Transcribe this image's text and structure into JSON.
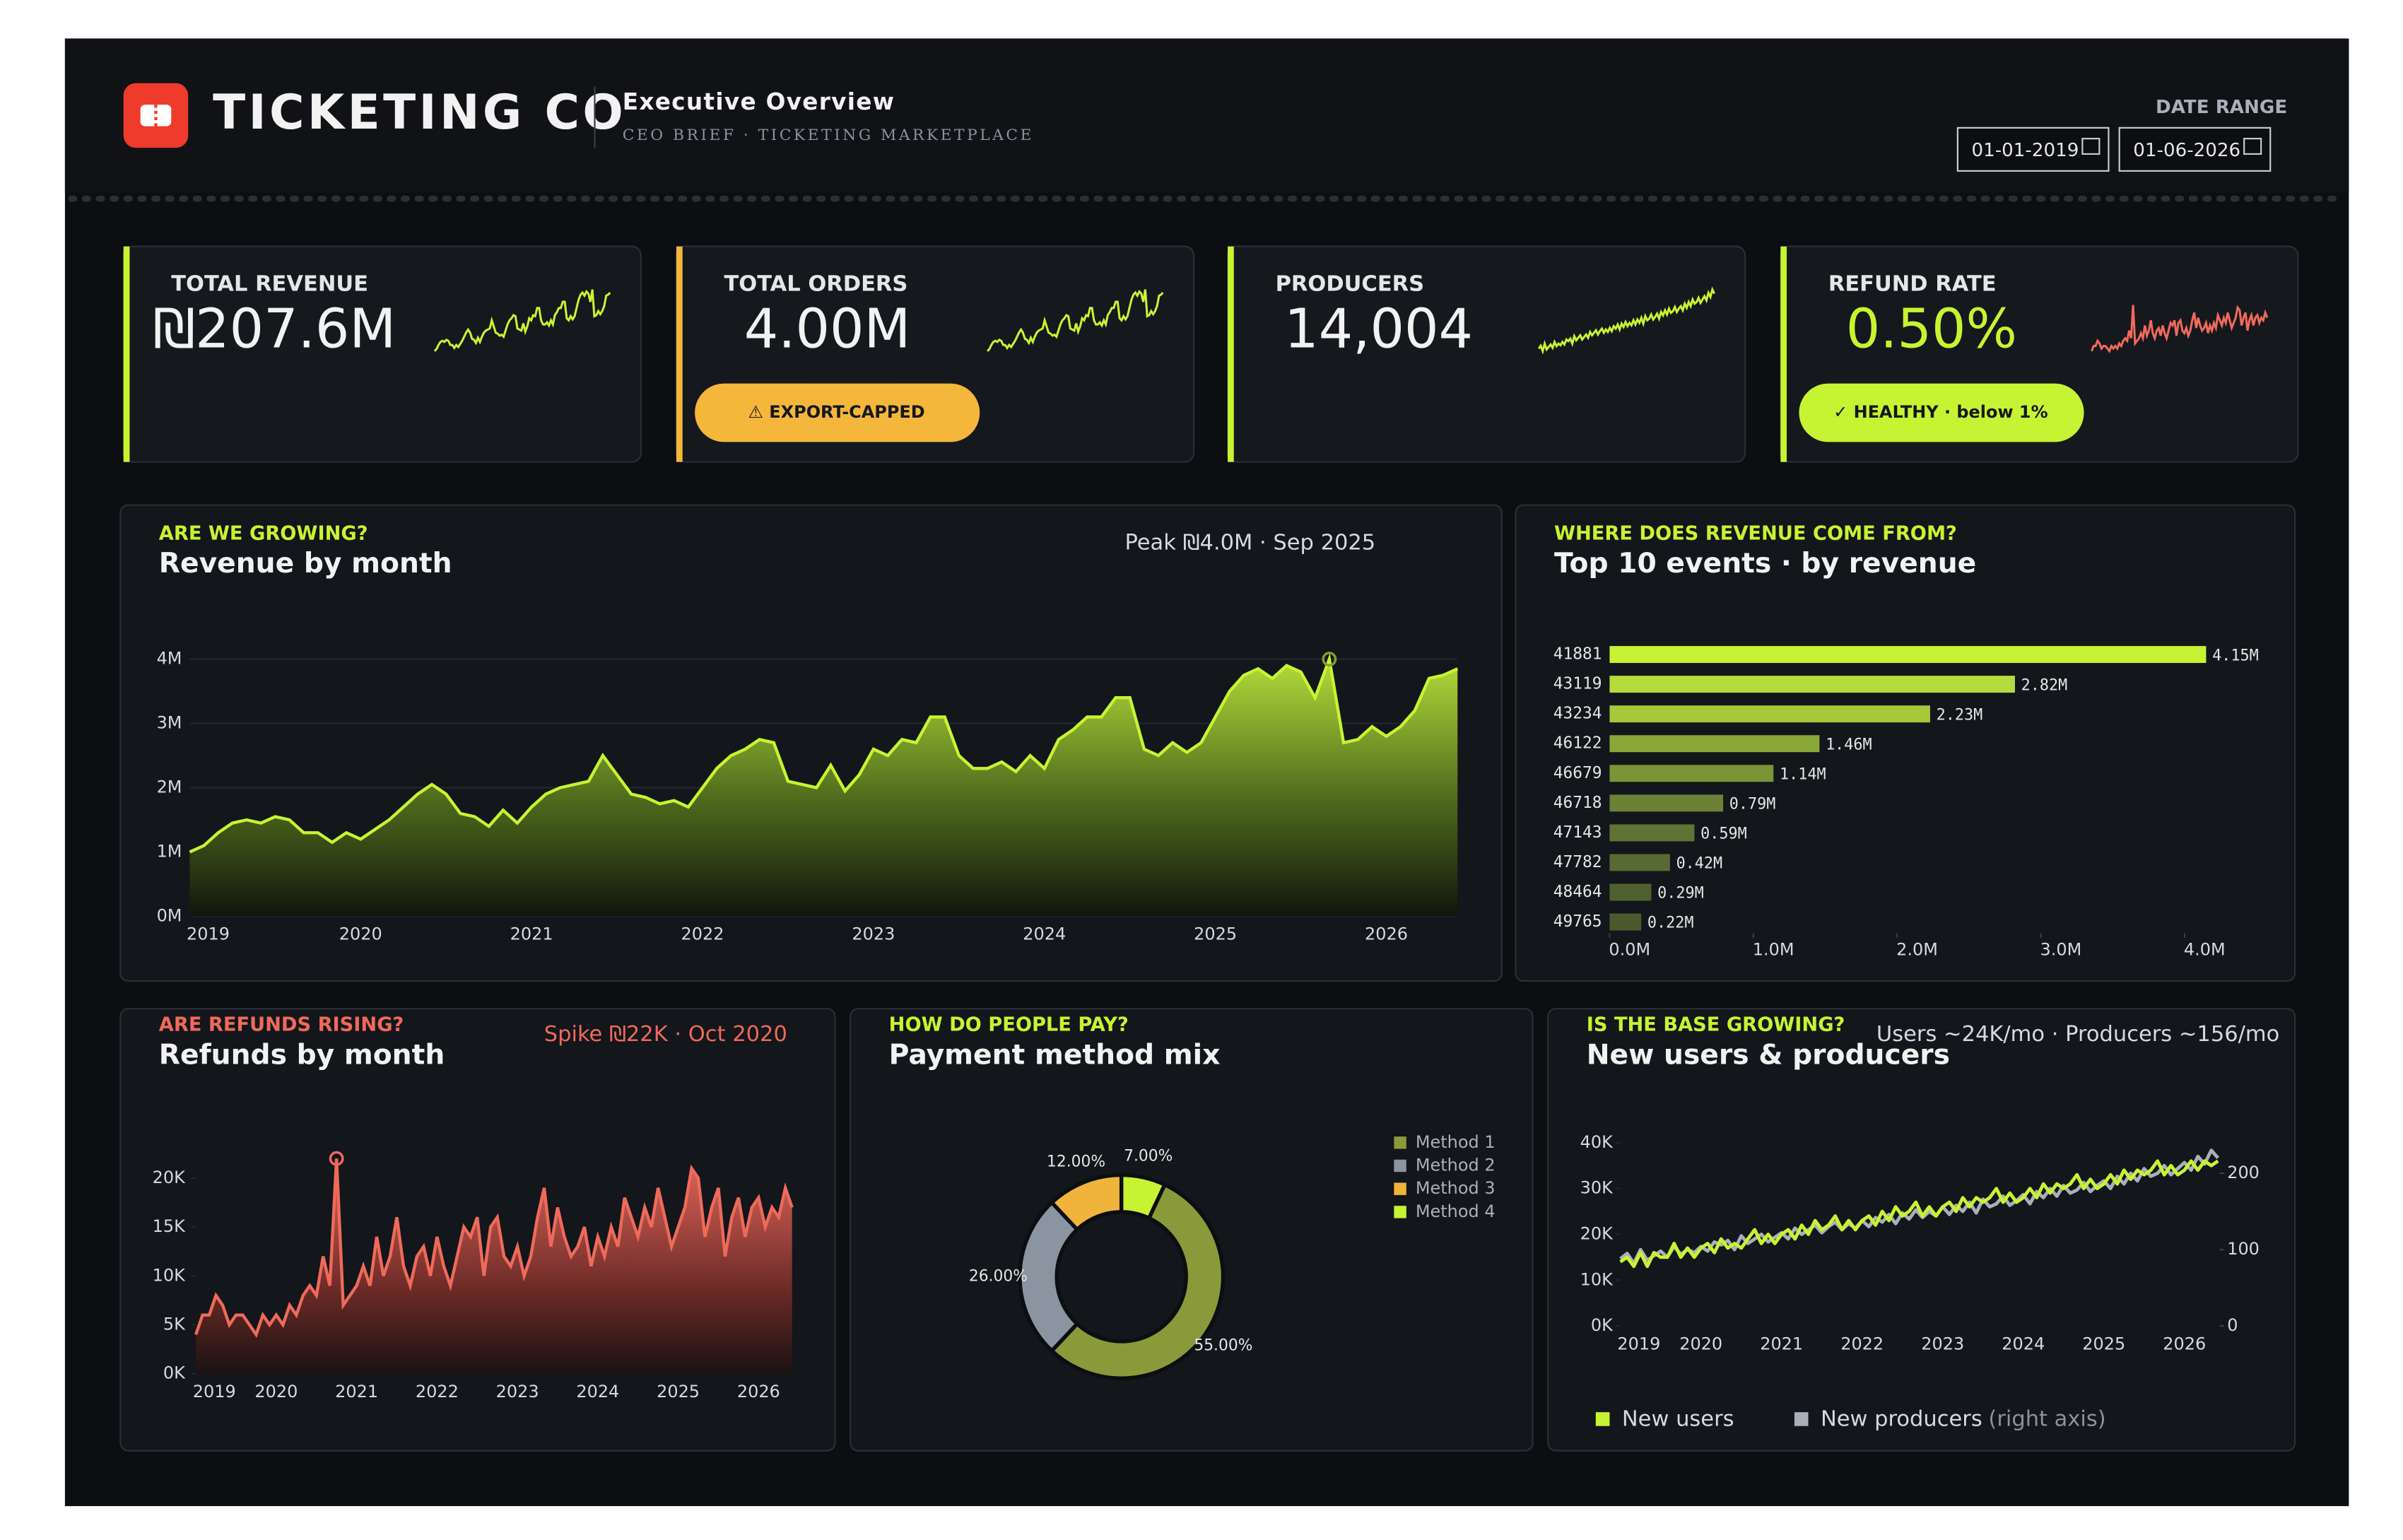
{
  "header": {
    "brand": "TICKETING CO",
    "title": "Executive Overview",
    "subtitle": "CEO BRIEF · TICKETING MARKETPLACE"
  },
  "date_range": {
    "label": "DATE RANGE",
    "start": "01-01-2019",
    "end": "01-06-2026"
  },
  "kpis": [
    {
      "label": "TOTAL REVENUE",
      "value": "₪207.6M",
      "color": "#c6f432",
      "value_color": "#f2f2f2",
      "spark_color": "#c6f432"
    },
    {
      "label": "TOTAL ORDERS",
      "value": "4.00M",
      "color": "#f5b63c",
      "value_color": "#f2f2f2",
      "spark_color": "#c6f432",
      "badge": "⚠ EXPORT-CAPPED",
      "badge_color": "#f5b63c"
    },
    {
      "label": "PRODUCERS",
      "value": "14,004",
      "color": "#c6f432",
      "value_color": "#f2f2f2",
      "spark_color": "#c6f432"
    },
    {
      "label": "REFUND RATE",
      "value": "0.50%",
      "color": "#c6f432",
      "value_color": "#c6f432",
      "spark_color": "#ef6a5a",
      "badge": "✓ HEALTHY · below 1%",
      "badge_color": "#c6f432"
    }
  ],
  "chart_data": [
    {
      "type": "area",
      "kicker": "ARE WE GROWING?",
      "accent": "#c6f432",
      "title": "Revenue by month",
      "annotation": "Peak ₪4.0M · Sep 2025",
      "color": "#c6f432",
      "categories": [
        "2019",
        null,
        null,
        null,
        null,
        null,
        null,
        null,
        null,
        null,
        null,
        null,
        "2020",
        null,
        null,
        null,
        null,
        null,
        null,
        null,
        null,
        null,
        null,
        null,
        "2021",
        null,
        null,
        null,
        null,
        null,
        null,
        null,
        null,
        null,
        null,
        null,
        "2022",
        null,
        null,
        null,
        null,
        null,
        null,
        null,
        null,
        null,
        null,
        null,
        "2023",
        null,
        null,
        null,
        null,
        null,
        null,
        null,
        null,
        null,
        null,
        null,
        "2024",
        null,
        null,
        null,
        null,
        null,
        null,
        null,
        null,
        null,
        null,
        null,
        "2025",
        null,
        null,
        null,
        null,
        null,
        null,
        null,
        null,
        null,
        null,
        null,
        "2026",
        null,
        null,
        null,
        null,
        null
      ],
      "values": [
        1.0,
        1.1,
        1.3,
        1.45,
        1.5,
        1.45,
        1.55,
        1.5,
        1.3,
        1.3,
        1.15,
        1.3,
        1.2,
        1.35,
        1.5,
        1.7,
        1.9,
        2.05,
        1.9,
        1.6,
        1.55,
        1.4,
        1.65,
        1.45,
        1.7,
        1.9,
        2.0,
        2.05,
        2.1,
        2.5,
        2.2,
        1.9,
        1.85,
        1.75,
        1.8,
        1.7,
        2.0,
        2.3,
        2.5,
        2.6,
        2.75,
        2.7,
        2.1,
        2.05,
        2.0,
        2.35,
        1.95,
        2.2,
        2.6,
        2.5,
        2.75,
        2.7,
        3.1,
        3.1,
        2.5,
        2.3,
        2.3,
        2.4,
        2.25,
        2.5,
        2.3,
        2.75,
        2.9,
        3.1,
        3.1,
        3.4,
        3.4,
        2.6,
        2.5,
        2.7,
        2.55,
        2.7,
        3.1,
        3.5,
        3.75,
        3.85,
        3.7,
        3.9,
        3.8,
        3.4,
        4.0,
        2.7,
        2.75,
        2.95,
        2.8,
        2.95,
        3.2,
        3.7,
        3.75,
        3.85
      ],
      "ylim": [
        0,
        4
      ],
      "yticks": [
        {
          "value": 0,
          "label": "0M"
        },
        {
          "value": 1,
          "label": "1M"
        },
        {
          "value": 2,
          "label": "2M"
        },
        {
          "value": 3,
          "label": "3M"
        },
        {
          "value": 4,
          "label": "4M"
        }
      ],
      "grid": true
    },
    {
      "type": "hbar",
      "kicker": "WHERE DOES REVENUE COME FROM?",
      "accent": "#c6f432",
      "title": "Top 10 events · by revenue",
      "categories": [
        "41881",
        "43119",
        "43234",
        "46122",
        "46679",
        "46718",
        "47143",
        "47782",
        "48464",
        "49765"
      ],
      "values": [
        4.15,
        2.82,
        2.23,
        1.46,
        1.14,
        0.79,
        0.59,
        0.42,
        0.29,
        0.22
      ],
      "value_labels": [
        "4.15M",
        "2.82M",
        "2.23M",
        "1.46M",
        "1.14M",
        "0.79M",
        "0.59M",
        "0.42M",
        "0.29M",
        "0.22M"
      ],
      "colors": [
        "#c6f432",
        "#b4dc3c",
        "#a6c93c",
        "#8aa83a",
        "#7a9438",
        "#6b8236",
        "#5f7434",
        "#566a32",
        "#4f6030",
        "#4a5a2e"
      ],
      "xlim": [
        0,
        4.2
      ],
      "xticks": [
        {
          "value": 0,
          "label": "0.0M"
        },
        {
          "value": 1,
          "label": "1.0M"
        },
        {
          "value": 2,
          "label": "2.0M"
        },
        {
          "value": 3,
          "label": "3.0M"
        },
        {
          "value": 4,
          "label": "4.0M"
        }
      ]
    },
    {
      "type": "area",
      "kicker": "ARE REFUNDS RISING?",
      "accent": "#ef6a5a",
      "title": "Refunds by month",
      "annotation": "Spike ₪22K · Oct 2020",
      "color": "#ef6a5a",
      "categories": [
        "2019",
        null,
        null,
        null,
        null,
        null,
        null,
        null,
        null,
        null,
        null,
        null,
        "2020",
        null,
        null,
        null,
        null,
        null,
        null,
        null,
        null,
        null,
        null,
        null,
        "2021",
        null,
        null,
        null,
        null,
        null,
        null,
        null,
        null,
        null,
        null,
        null,
        "2022",
        null,
        null,
        null,
        null,
        null,
        null,
        null,
        null,
        null,
        null,
        null,
        "2023",
        null,
        null,
        null,
        null,
        null,
        null,
        null,
        null,
        null,
        null,
        null,
        "2024",
        null,
        null,
        null,
        null,
        null,
        null,
        null,
        null,
        null,
        null,
        null,
        "2025",
        null,
        null,
        null,
        null,
        null,
        null,
        null,
        null,
        null,
        null,
        null,
        "2026",
        null,
        null,
        null,
        null,
        null
      ],
      "values": [
        4,
        6,
        6,
        8,
        7,
        5,
        6,
        6,
        5,
        4,
        6,
        5,
        6,
        5,
        7,
        6,
        8,
        9,
        8,
        12,
        9,
        22,
        7,
        8,
        9,
        11,
        9,
        14,
        10,
        12,
        16,
        11,
        9,
        12,
        13,
        10,
        14,
        11,
        9,
        12,
        15,
        14,
        16,
        10,
        15,
        16,
        12,
        11,
        13,
        10,
        12,
        16,
        19,
        13,
        17,
        14,
        12,
        13,
        15,
        11,
        14,
        12,
        15,
        13,
        18,
        16,
        14,
        17,
        15,
        19,
        16,
        13,
        15,
        17,
        21,
        20,
        14,
        17,
        19,
        12,
        16,
        18,
        14,
        17,
        18,
        15,
        17,
        16,
        19,
        17
      ],
      "ylim": [
        0,
        20
      ],
      "yticks": [
        {
          "value": 0,
          "label": "0K"
        },
        {
          "value": 5,
          "label": "5K"
        },
        {
          "value": 10,
          "label": "10K"
        },
        {
          "value": 15,
          "label": "15K"
        },
        {
          "value": 20,
          "label": "20K"
        }
      ],
      "grid": false
    },
    {
      "type": "donut",
      "kicker": "HOW DO PEOPLE PAY?",
      "accent": "#c6f432",
      "title": "Payment method mix",
      "categories": [
        "Method 1",
        "Method 2",
        "Method 3",
        "Method 4"
      ],
      "values": [
        55,
        26,
        12,
        7
      ],
      "value_labels": [
        "55.00%",
        "26.00%",
        "12.00%",
        "7.00%"
      ],
      "colors": [
        "#8a9a3a",
        "#8b95a1",
        "#f0b43c",
        "#c6f432"
      ],
      "legend": "right"
    },
    {
      "type": "line",
      "kicker": "IS THE BASE GROWING?",
      "accent": "#c6f432",
      "title": "New users & producers",
      "annotation": "Users ~24K/mo · Producers ~156/mo",
      "categories": [
        "2019",
        null,
        null,
        null,
        null,
        null,
        null,
        null,
        null,
        null,
        null,
        null,
        "2020",
        null,
        null,
        null,
        null,
        null,
        null,
        null,
        null,
        null,
        null,
        null,
        "2021",
        null,
        null,
        null,
        null,
        null,
        null,
        null,
        null,
        null,
        null,
        null,
        "2022",
        null,
        null,
        null,
        null,
        null,
        null,
        null,
        null,
        null,
        null,
        null,
        "2023",
        null,
        null,
        null,
        null,
        null,
        null,
        null,
        null,
        null,
        null,
        null,
        "2024",
        null,
        null,
        null,
        null,
        null,
        null,
        null,
        null,
        null,
        null,
        null,
        "2025",
        null,
        null,
        null,
        null,
        null,
        null,
        null,
        null,
        null,
        null,
        null,
        "2026",
        null,
        null,
        null,
        null,
        null
      ],
      "series": [
        {
          "name": "New users",
          "color": "#c6f432",
          "values": [
            14,
            15,
            13,
            16,
            13,
            16,
            15,
            15,
            18,
            15,
            17,
            15,
            17,
            18,
            16,
            19,
            17,
            18,
            17,
            19,
            21,
            18,
            20,
            18,
            20,
            21,
            19,
            22,
            20,
            23,
            21,
            22,
            24,
            21,
            23,
            21,
            23,
            24,
            22,
            25,
            23,
            26,
            24,
            25,
            27,
            24,
            26,
            24,
            26,
            27,
            25,
            28,
            26,
            28,
            27,
            28,
            30,
            27,
            29,
            27,
            28,
            30,
            28,
            31,
            29,
            31,
            30,
            31,
            33,
            30,
            32,
            30,
            31,
            33,
            31,
            34,
            32,
            34,
            33,
            34,
            36,
            33,
            35,
            33,
            34,
            36,
            34,
            36,
            35,
            36
          ]
        },
        {
          "name": "New producers",
          "legend_note": "(right axis)",
          "color": "#a9b0ba",
          "axis": "y2",
          "values": [
            88,
            95,
            82,
            100,
            86,
            92,
            98,
            90,
            104,
            94,
            100,
            96,
            104,
            98,
            110,
            106,
            112,
            100,
            118,
            108,
            114,
            120,
            110,
            116,
            122,
            114,
            128,
            120,
            126,
            132,
            122,
            130,
            136,
            126,
            134,
            128,
            138,
            130,
            142,
            136,
            146,
            134,
            148,
            140,
            152,
            142,
            150,
            144,
            156,
            146,
            158,
            150,
            162,
            148,
            166,
            156,
            160,
            170,
            158,
            164,
            172,
            160,
            176,
            168,
            180,
            170,
            184,
            174,
            178,
            188,
            176,
            184,
            190,
            180,
            196,
            186,
            200,
            190,
            206,
            196,
            200,
            210,
            198,
            206,
            214,
            204,
            222,
            212,
            230,
            220
          ]
        }
      ],
      "ylim": [
        0,
        40
      ],
      "yticks": [
        {
          "value": 0,
          "label": "0K"
        },
        {
          "value": 10,
          "label": "10K"
        },
        {
          "value": 20,
          "label": "20K"
        },
        {
          "value": 30,
          "label": "30K"
        },
        {
          "value": 40,
          "label": "40K"
        }
      ],
      "y2lim": [
        0,
        240
      ],
      "y2ticks": [
        0,
        100,
        200
      ],
      "legend": "bottom"
    }
  ]
}
